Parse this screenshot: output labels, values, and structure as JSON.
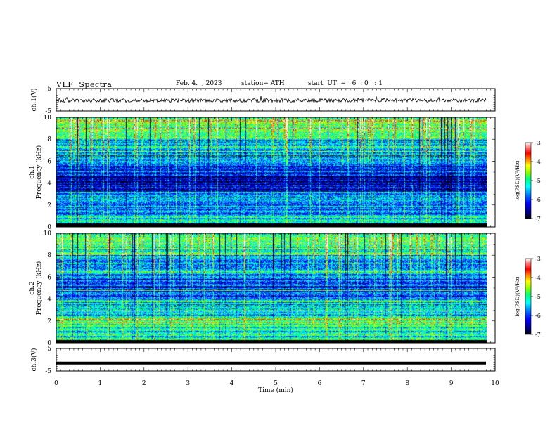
{
  "header": {
    "title": "VLF  Spectra",
    "date": "Feb. 4.  , 2023",
    "station": "station= ATH",
    "start": "start  UT  =   6  : 0   : 1"
  },
  "colors": {
    "background": "#ffffff",
    "axis": "#000000",
    "trace": "#000000",
    "colormap": [
      "#000000",
      "#000080",
      "#0000ff",
      "#0080ff",
      "#00ffff",
      "#00ff80",
      "#80ff00",
      "#ffff00",
      "#ff8000",
      "#ff0000",
      "#ff8080",
      "#ffffff"
    ]
  },
  "chart_data": [
    {
      "type": "line",
      "panel": "ch1-waveform",
      "ylabel": "ch.1(V)",
      "ylim": [
        -5,
        5
      ],
      "yticks": [
        "5",
        "-5"
      ],
      "x_range": [
        0,
        9.8
      ],
      "description_level": -0.3,
      "note": "noisy waveform centered slightly below 0 V"
    },
    {
      "type": "heatmap",
      "panel": "ch1-spectrogram",
      "ylabel": "ch.1\nFrequency (kHz)",
      "ylim": [
        0,
        10
      ],
      "yticks": [
        "0",
        "2",
        "4",
        "6",
        "8",
        "10"
      ],
      "colorbar": {
        "label": "log(PSD)(V²/Hz)",
        "range": [
          -7,
          -3
        ],
        "ticks": [
          "-3",
          "-4",
          "-5",
          "-6",
          "-7"
        ]
      },
      "bands": [
        {
          "from": 0,
          "to": 0.3,
          "level": -7.0
        },
        {
          "from": 0.3,
          "to": 1.0,
          "level": -5.3
        },
        {
          "from": 1.0,
          "to": 2.2,
          "level": -5.7
        },
        {
          "from": 2.2,
          "to": 3.2,
          "level": -5.5
        },
        {
          "from": 3.2,
          "to": 4.7,
          "level": -6.5
        },
        {
          "from": 4.7,
          "to": 5.8,
          "level": -6.1
        },
        {
          "from": 5.8,
          "to": 8.0,
          "level": -5.6
        },
        {
          "from": 8.0,
          "to": 10.0,
          "level": -4.9
        }
      ]
    },
    {
      "type": "heatmap",
      "panel": "ch2-spectrogram",
      "ylabel": "ch.2\nFrequency (kHz)",
      "ylim": [
        0,
        10
      ],
      "yticks": [
        "0",
        "2",
        "4",
        "6",
        "8",
        "10"
      ],
      "colorbar": {
        "label": "log(PSD)(V²/Hz)",
        "range": [
          -7,
          -3
        ],
        "ticks": [
          "-3",
          "-4",
          "-5",
          "-6",
          "-7"
        ]
      },
      "bands": [
        {
          "from": 0,
          "to": 0.2,
          "level": -6.8
        },
        {
          "from": 0.2,
          "to": 1.2,
          "level": -5.2
        },
        {
          "from": 1.2,
          "to": 2.4,
          "level": -4.8
        },
        {
          "from": 2.4,
          "to": 4.0,
          "level": -5.4
        },
        {
          "from": 4.0,
          "to": 6.0,
          "level": -6.0
        },
        {
          "from": 6.0,
          "to": 8.0,
          "level": -5.6
        },
        {
          "from": 8.0,
          "to": 10.0,
          "level": -5.0
        }
      ]
    },
    {
      "type": "line",
      "panel": "ch3-waveform",
      "ylabel": "ch.3(V)",
      "ylim": [
        -5,
        5
      ],
      "yticks": [
        "5",
        "-5"
      ],
      "x_range": [
        0,
        9.8
      ],
      "description_level": -1.5,
      "note": "flat thick trace near -1.5 V"
    }
  ],
  "x_axis": {
    "xlabel": "Time  (min)",
    "xlim": [
      0,
      10
    ],
    "ticks": [
      "0",
      "1",
      "2",
      "3",
      "4",
      "5",
      "6",
      "7",
      "8",
      "9",
      "10"
    ]
  }
}
